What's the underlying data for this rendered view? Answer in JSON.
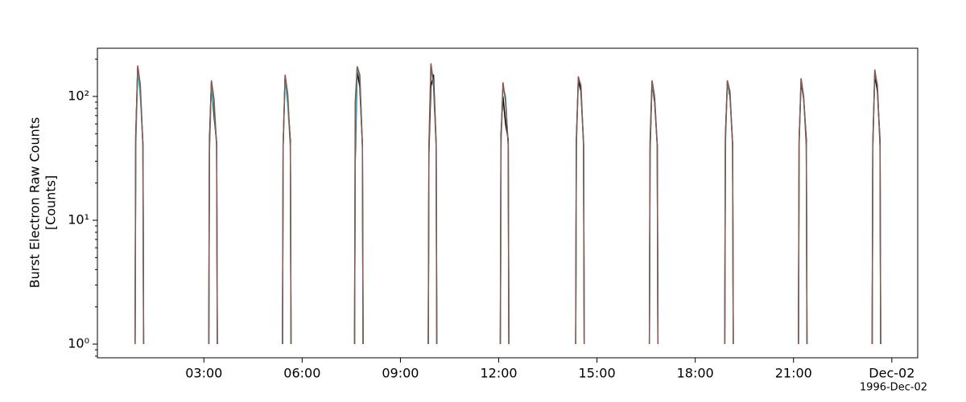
{
  "chart_data": {
    "type": "line",
    "ylabel": [
      "Burst Electron Raw Counts",
      "[Counts]"
    ],
    "x_offset_label": "1996-Dec-02",
    "log_y": true,
    "grid": false,
    "xlim": [
      -0.25,
      24.79
    ],
    "ylim": [
      0.776,
      245
    ],
    "xticks": [
      {
        "value": 3,
        "label": "03:00"
      },
      {
        "value": 6,
        "label": "06:00"
      },
      {
        "value": 9,
        "label": "09:00"
      },
      {
        "value": 12,
        "label": "12:00"
      },
      {
        "value": 15,
        "label": "15:00"
      },
      {
        "value": 18,
        "label": "18:00"
      },
      {
        "value": 21,
        "label": "21:00"
      },
      {
        "value": 24,
        "label": "Dec-02"
      }
    ],
    "yticks": [
      {
        "value": 1,
        "label": "10⁰"
      },
      {
        "value": 10,
        "label": "10¹"
      },
      {
        "value": 100,
        "label": "10²"
      }
    ],
    "x": [
      0.9,
      0.92,
      0.98,
      1.06,
      1.14,
      1.16,
      1.25,
      3.15,
      3.17,
      3.23,
      3.31,
      3.39,
      3.41,
      3.5,
      5.4,
      5.42,
      5.48,
      5.56,
      5.64,
      5.66,
      5.75,
      7.6,
      7.62,
      7.68,
      7.76,
      7.84,
      7.86,
      7.95,
      9.85,
      9.87,
      9.93,
      10.01,
      10.09,
      10.11,
      10.2,
      12.05,
      12.07,
      12.13,
      12.21,
      12.29,
      12.31,
      12.4,
      14.35,
      14.37,
      14.43,
      14.51,
      14.59,
      14.61,
      14.7,
      16.6,
      16.62,
      16.68,
      16.76,
      16.84,
      16.86,
      16.95,
      18.9,
      18.92,
      18.98,
      19.06,
      19.14,
      19.16,
      19.25,
      21.15,
      21.17,
      21.23,
      21.31,
      21.39,
      21.41,
      21.5,
      23.4,
      23.42,
      23.48,
      23.56,
      23.64,
      23.66,
      23.75
    ],
    "series": [
      {
        "color": "#000000",
        "values": [
          1,
          48,
          170,
          110,
          40,
          1,
          null,
          1,
          45,
          130,
          70,
          42,
          1,
          null,
          1,
          40,
          145,
          90,
          44,
          1,
          null,
          1,
          30,
          160,
          120,
          40,
          1,
          null,
          1,
          35,
          120,
          150,
          42,
          1,
          null,
          1,
          50,
          100,
          60,
          45,
          1,
          null,
          1,
          45,
          135,
          110,
          42,
          1,
          null,
          1,
          35,
          130,
          90,
          40,
          1,
          null,
          1,
          48,
          130,
          100,
          42,
          1,
          null,
          1,
          45,
          130,
          95,
          45,
          1,
          null,
          1,
          42,
          150,
          110,
          44,
          1,
          null
        ]
      },
      {
        "color": "#17becf",
        "values": [
          1,
          38,
          165,
          100,
          42,
          1,
          null,
          1,
          35,
          125,
          80,
          40,
          1,
          null,
          1,
          42,
          140,
          85,
          40,
          1,
          null,
          1,
          38,
          170,
          140,
          40,
          1,
          null,
          1,
          40,
          175,
          120,
          40,
          1,
          null,
          1,
          40,
          120,
          100,
          40,
          1,
          null,
          1,
          40,
          140,
          125,
          40,
          1,
          null,
          1,
          40,
          130,
          95,
          40,
          1,
          null,
          1,
          40,
          130,
          105,
          40,
          1,
          null,
          1,
          45,
          140,
          95,
          40,
          1,
          null,
          1,
          38,
          155,
          125,
          40,
          1,
          null
        ]
      },
      {
        "color": "#8c564b",
        "values": [
          1,
          45,
          178,
          125,
          40,
          1,
          null,
          1,
          40,
          135,
          95,
          40,
          1,
          null,
          1,
          40,
          150,
          105,
          40,
          1,
          null,
          1,
          90,
          175,
          150,
          40,
          1,
          null,
          1,
          40,
          185,
          130,
          40,
          1,
          null,
          1,
          45,
          130,
          90,
          40,
          1,
          null,
          1,
          40,
          145,
          120,
          40,
          1,
          null,
          1,
          45,
          135,
          100,
          40,
          1,
          null,
          1,
          45,
          135,
          110,
          40,
          1,
          null,
          1,
          40,
          140,
          100,
          40,
          1,
          null,
          1,
          40,
          165,
          120,
          40,
          1,
          null
        ]
      }
    ]
  }
}
